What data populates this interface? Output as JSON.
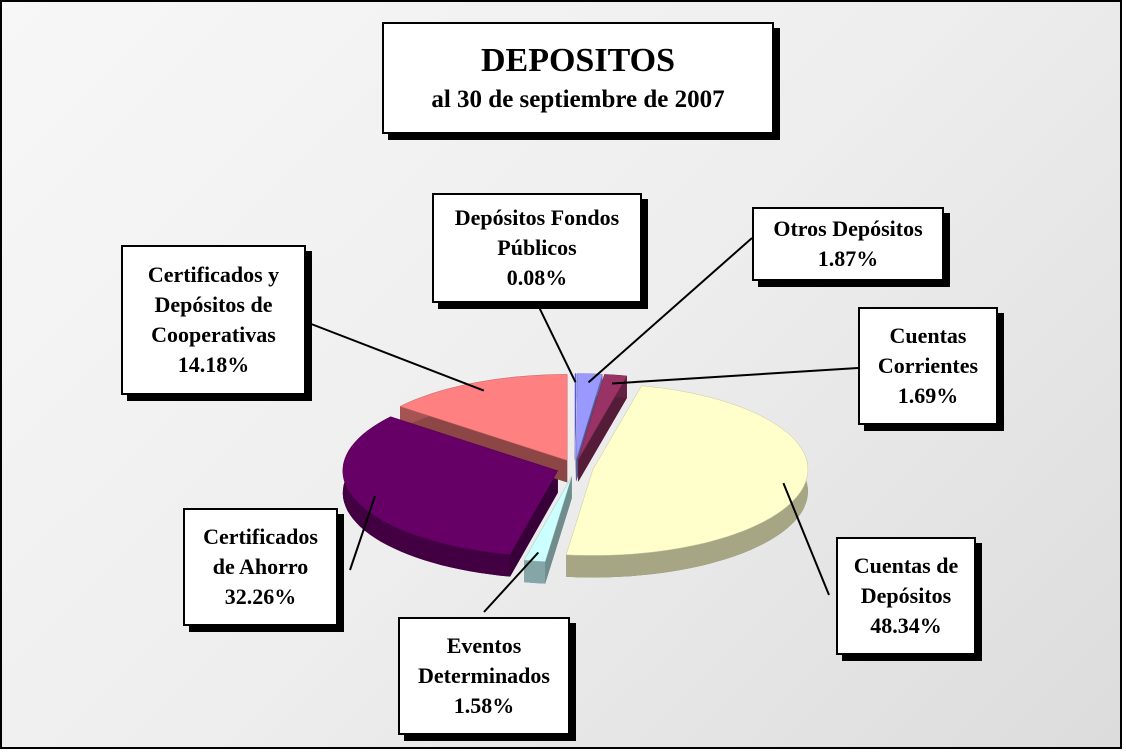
{
  "chart_data": {
    "type": "pie",
    "title": "DEPOSITOS",
    "subtitle": "al 30 de septiembre de 2007",
    "categories": [
      "Depósitos Fondos Públicos",
      "Otros Depósitos",
      "Cuentas Corrientes",
      "Cuentas de Depósitos",
      "Eventos Determinados",
      "Certificados de Ahorro",
      "Certificados y Depósitos de Cooperativas"
    ],
    "values": [
      0.08,
      1.87,
      1.69,
      48.34,
      1.58,
      32.26,
      14.18
    ],
    "value_labels": [
      "0.08%",
      "1.87%",
      "1.69%",
      "48.34%",
      "1.58%",
      "32.26%",
      "14.18%"
    ],
    "colors": [
      "#6666ff",
      "#9999ff",
      "#993366",
      "#ffffcc",
      "#ccffff",
      "#660066",
      "#ff8080"
    ]
  }
}
